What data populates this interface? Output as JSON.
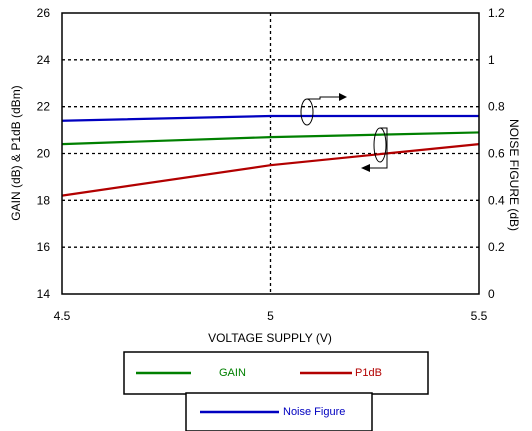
{
  "chart_data": {
    "type": "line",
    "xlabel": "VOLTAGE SUPPLY (V)",
    "ylabel": "GAIN (dB) & P1dB (dBm)",
    "y2label": "NOISE FIGURE (dB)",
    "xlim": [
      4.5,
      5.5
    ],
    "ylim": [
      14,
      26
    ],
    "y2lim": [
      0,
      1.2
    ],
    "xticks": [
      "4.5",
      "5",
      "5.5"
    ],
    "yticks": [
      "14",
      "16",
      "18",
      "20",
      "22",
      "24",
      "26"
    ],
    "y2ticks": [
      "0",
      "0.2",
      "0.4",
      "0.6",
      "0.8",
      "1",
      "1.2"
    ],
    "grid": "dashed",
    "legend": [
      {
        "name": "GAIN",
        "color": "#008000"
      },
      {
        "name": "P1dB",
        "color": "#b20000"
      },
      {
        "name": "Noise Figure",
        "color": "#0000c0"
      }
    ],
    "series": [
      {
        "name": "GAIN",
        "axis": "left",
        "color": "#008000",
        "x": [
          4.5,
          5.0,
          5.5
        ],
        "y": [
          20.4,
          20.7,
          20.9
        ]
      },
      {
        "name": "P1dB",
        "axis": "left",
        "color": "#b20000",
        "x": [
          4.5,
          5.0,
          5.5
        ],
        "y": [
          18.2,
          19.5,
          20.4
        ]
      },
      {
        "name": "Noise Figure",
        "axis": "right",
        "color": "#0000c0",
        "x": [
          4.5,
          5.0,
          5.5
        ],
        "y": [
          0.74,
          0.76,
          0.76
        ]
      }
    ]
  }
}
